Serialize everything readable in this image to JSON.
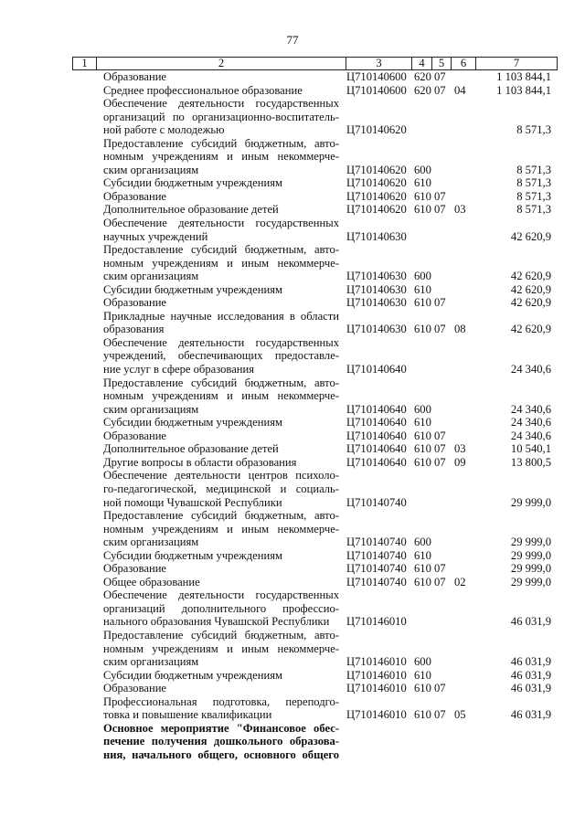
{
  "page_number": "77",
  "header": [
    "1",
    "2",
    "3",
    "4",
    "5",
    "6",
    "7"
  ],
  "rows": [
    {
      "lines": [
        "Образование"
      ],
      "c3": "Ц710140600",
      "c4": "620",
      "c5": "07",
      "c6": "",
      "c7": "1 103 844,1"
    },
    {
      "lines": [
        "Среднее профессиональное образование"
      ],
      "c3": "Ц710140600",
      "c4": "620",
      "c5": "07",
      "c6": "04",
      "c7": "1 103 844,1"
    },
    {
      "lines": [
        "Обеспечение деятельности государственных",
        "организаций по организационно-воспитатель-",
        "ной работе с молодежью"
      ],
      "c3": "Ц710140620",
      "c4": "",
      "c5": "",
      "c6": "",
      "c7": "8 571,3"
    },
    {
      "lines": [
        "Предоставление субсидий бюджетным, авто-",
        "номным учреждениям и иным некоммерче-",
        "ским организациям"
      ],
      "c3": "Ц710140620",
      "c4": "600",
      "c5": "",
      "c6": "",
      "c7": "8 571,3"
    },
    {
      "lines": [
        "Субсидии бюджетным учреждениям"
      ],
      "c3": "Ц710140620",
      "c4": "610",
      "c5": "",
      "c6": "",
      "c7": "8 571,3"
    },
    {
      "lines": [
        "Образование"
      ],
      "c3": "Ц710140620",
      "c4": "610",
      "c5": "07",
      "c6": "",
      "c7": "8 571,3"
    },
    {
      "lines": [
        "Дополнительное образование детей"
      ],
      "c3": "Ц710140620",
      "c4": "610",
      "c5": "07",
      "c6": "03",
      "c7": "8 571,3"
    },
    {
      "lines": [
        "Обеспечение деятельности государственных",
        "научных учреждений"
      ],
      "c3": "Ц710140630",
      "c4": "",
      "c5": "",
      "c6": "",
      "c7": "42 620,9"
    },
    {
      "lines": [
        "Предоставление субсидий бюджетным, авто-",
        "номным учреждениям и иным некоммерче-",
        "ским организациям"
      ],
      "c3": "Ц710140630",
      "c4": "600",
      "c5": "",
      "c6": "",
      "c7": "42 620,9"
    },
    {
      "lines": [
        "Субсидии бюджетным учреждениям"
      ],
      "c3": "Ц710140630",
      "c4": "610",
      "c5": "",
      "c6": "",
      "c7": "42 620,9"
    },
    {
      "lines": [
        "Образование"
      ],
      "c3": "Ц710140630",
      "c4": "610",
      "c5": "07",
      "c6": "",
      "c7": "42 620,9"
    },
    {
      "lines": [
        "Прикладные научные исследования в области",
        "образования"
      ],
      "c3": "Ц710140630",
      "c4": "610",
      "c5": "07",
      "c6": "08",
      "c7": "42 620,9"
    },
    {
      "lines": [
        "Обеспечение деятельности государственных",
        "учреждений, обеспечивающих предоставле-",
        "ние услуг в сфере образования"
      ],
      "c3": "Ц710140640",
      "c4": "",
      "c5": "",
      "c6": "",
      "c7": "24 340,6"
    },
    {
      "lines": [
        "Предоставление субсидий бюджетным, авто-",
        "номным учреждениям и иным некоммерче-",
        "ским организациям"
      ],
      "c3": "Ц710140640",
      "c4": "600",
      "c5": "",
      "c6": "",
      "c7": "24 340,6"
    },
    {
      "lines": [
        "Субсидии бюджетным учреждениям"
      ],
      "c3": "Ц710140640",
      "c4": "610",
      "c5": "",
      "c6": "",
      "c7": "24 340,6"
    },
    {
      "lines": [
        "Образование"
      ],
      "c3": "Ц710140640",
      "c4": "610",
      "c5": "07",
      "c6": "",
      "c7": "24 340,6"
    },
    {
      "lines": [
        "Дополнительное образование детей"
      ],
      "c3": "Ц710140640",
      "c4": "610",
      "c5": "07",
      "c6": "03",
      "c7": "10 540,1"
    },
    {
      "lines": [
        "Другие вопросы в области образования"
      ],
      "c3": "Ц710140640",
      "c4": "610",
      "c5": "07",
      "c6": "09",
      "c7": "13 800,5"
    },
    {
      "lines": [
        "Обеспечение деятельности центров психоло-",
        "го-педагогической, медицинской и социаль-",
        "ной помощи Чувашской Республики"
      ],
      "c3": "Ц710140740",
      "c4": "",
      "c5": "",
      "c6": "",
      "c7": "29 999,0"
    },
    {
      "lines": [
        "Предоставление субсидий бюджетным, авто-",
        "номным учреждениям и иным некоммерче-",
        "ским организациям"
      ],
      "c3": "Ц710140740",
      "c4": "600",
      "c5": "",
      "c6": "",
      "c7": "29 999,0"
    },
    {
      "lines": [
        "Субсидии бюджетным учреждениям"
      ],
      "c3": "Ц710140740",
      "c4": "610",
      "c5": "",
      "c6": "",
      "c7": "29 999,0"
    },
    {
      "lines": [
        "Образование"
      ],
      "c3": "Ц710140740",
      "c4": "610",
      "c5": "07",
      "c6": "",
      "c7": "29 999,0"
    },
    {
      "lines": [
        "Общее образование"
      ],
      "c3": "Ц710140740",
      "c4": "610",
      "c5": "07",
      "c6": "02",
      "c7": "29 999,0"
    },
    {
      "lines": [
        "Обеспечение деятельности государственных",
        "организаций дополнительного профессио-",
        "нального образования Чувашской Республики"
      ],
      "c3": "Ц710146010",
      "c4": "",
      "c5": "",
      "c6": "",
      "c7": "46 031,9"
    },
    {
      "lines": [
        "Предоставление субсидий бюджетным, авто-",
        "номным учреждениям и иным некоммерче-",
        "ским организациям"
      ],
      "c3": "Ц710146010",
      "c4": "600",
      "c5": "",
      "c6": "",
      "c7": "46 031,9"
    },
    {
      "lines": [
        "Субсидии бюджетным учреждениям"
      ],
      "c3": "Ц710146010",
      "c4": "610",
      "c5": "",
      "c6": "",
      "c7": "46 031,9"
    },
    {
      "lines": [
        "Образование"
      ],
      "c3": "Ц710146010",
      "c4": "610",
      "c5": "07",
      "c6": "",
      "c7": "46 031,9"
    },
    {
      "lines": [
        "Профессиональная подготовка, переподго-",
        "товка и повышение квалификации"
      ],
      "c3": "Ц710146010",
      "c4": "610",
      "c5": "07",
      "c6": "05",
      "c7": "46 031,9"
    },
    {
      "lines": [
        "Основное мероприятие \"Финансовое обес-",
        "печение получения дошкольного образова-",
        "ния, начального общего, основного общего"
      ],
      "c3": "",
      "c4": "",
      "c5": "",
      "c6": "",
      "c7": "",
      "bold": true,
      "continues": true
    }
  ]
}
